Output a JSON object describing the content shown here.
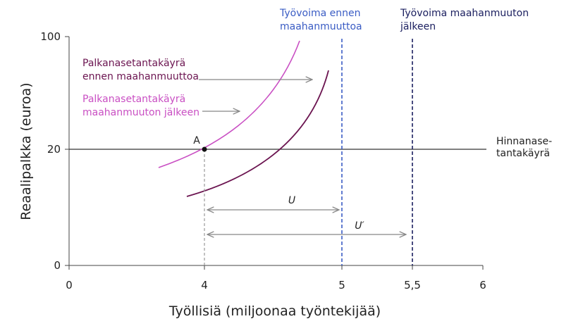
{
  "y_axis": {
    "label": "Reaalipalkka (euroa)",
    "ticks": [
      "100",
      "20",
      "0"
    ]
  },
  "x_axis": {
    "label": "Työllisiä (miljoonaa työntekijää)",
    "ticks": [
      "0",
      "4",
      "5",
      "5,5",
      "6"
    ]
  },
  "labor_before": [
    "Työvoima ennen",
    "maahanmuuttoa"
  ],
  "labor_after": [
    "Työvoima maahanmuuton",
    "jälkeen"
  ],
  "wage_curve_before": [
    "Palkanasetantakäyrä",
    "ennen maahanmuuttoa"
  ],
  "wage_curve_after": [
    "Palkanasetantakäyrä",
    "maahanmuuton jälkeen"
  ],
  "price_curve": [
    "Hinnanase-",
    "tantakäyrä"
  ],
  "point": "A",
  "unemployment_before": "U",
  "unemployment_after": "U′"
}
